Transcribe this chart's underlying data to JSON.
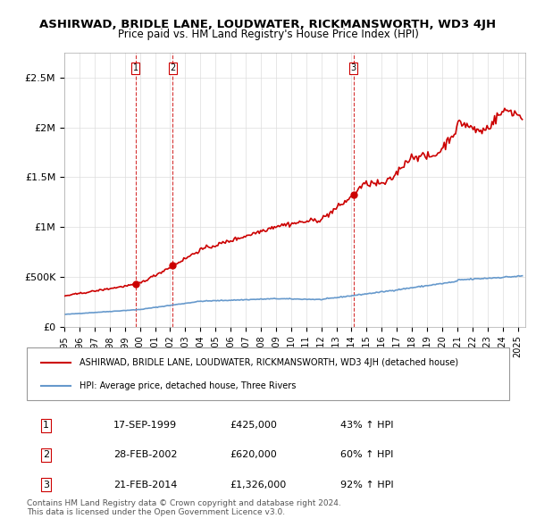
{
  "title": "ASHIRWAD, BRIDLE LANE, LOUDWATER, RICKMANSWORTH, WD3 4JH",
  "subtitle": "Price paid vs. HM Land Registry's House Price Index (HPI)",
  "legend_line1": "ASHIRWAD, BRIDLE LANE, LOUDWATER, RICKMANSWORTH, WD3 4JH (detached house)",
  "legend_line2": "HPI: Average price, detached house, Three Rivers",
  "sale1_label": "1",
  "sale1_date": "17-SEP-1999",
  "sale1_price": "£425,000",
  "sale1_hpi": "43% ↑ HPI",
  "sale1_year": 1999.72,
  "sale1_value": 425000,
  "sale2_label": "2",
  "sale2_date": "28-FEB-2002",
  "sale2_price": "£620,000",
  "sale2_hpi": "60% ↑ HPI",
  "sale2_year": 2002.16,
  "sale2_value": 620000,
  "sale3_label": "3",
  "sale3_date": "21-FEB-2014",
  "sale3_price": "£1,326,000",
  "sale3_hpi": "92% ↑ HPI",
  "sale3_year": 2014.14,
  "sale3_value": 1326000,
  "footer_line1": "Contains HM Land Registry data © Crown copyright and database right 2024.",
  "footer_line2": "This data is licensed under the Open Government Licence v3.0.",
  "red_color": "#cc0000",
  "blue_color": "#6699cc",
  "vline_color": "#cc0000",
  "grid_color": "#dddddd",
  "ylim": [
    0,
    2750000
  ],
  "xlim_start": 1995.0,
  "xlim_end": 2025.5
}
